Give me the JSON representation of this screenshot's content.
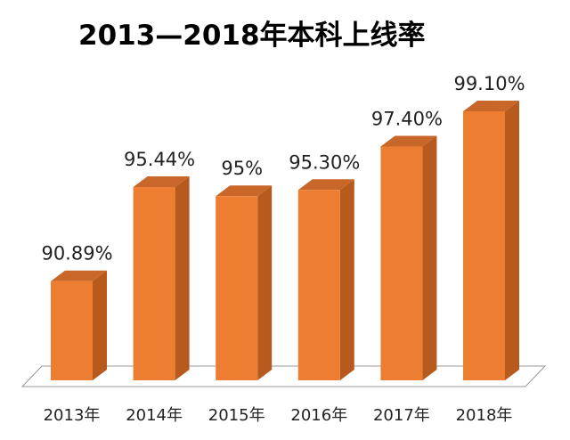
{
  "chart_data": {
    "type": "bar",
    "title": "2013—2018年本科上线率",
    "categories": [
      "2013年",
      "2014年",
      "2015年",
      "2016年",
      "2017年",
      "2018年"
    ],
    "values": [
      90.89,
      95.44,
      95,
      95.3,
      97.4,
      99.1
    ],
    "data_labels": [
      "90.89%",
      "95.44%",
      "95%",
      "95.30%",
      "97.40%",
      "99.10%"
    ],
    "xlabel": "",
    "ylabel": "",
    "ylim": [
      86.1,
      100
    ],
    "grid": false,
    "style": "3d-column",
    "colors": {
      "front": "#ed7d31",
      "side": "#b65a1e",
      "top": "#c9662a",
      "floor_line": "#999999"
    }
  }
}
